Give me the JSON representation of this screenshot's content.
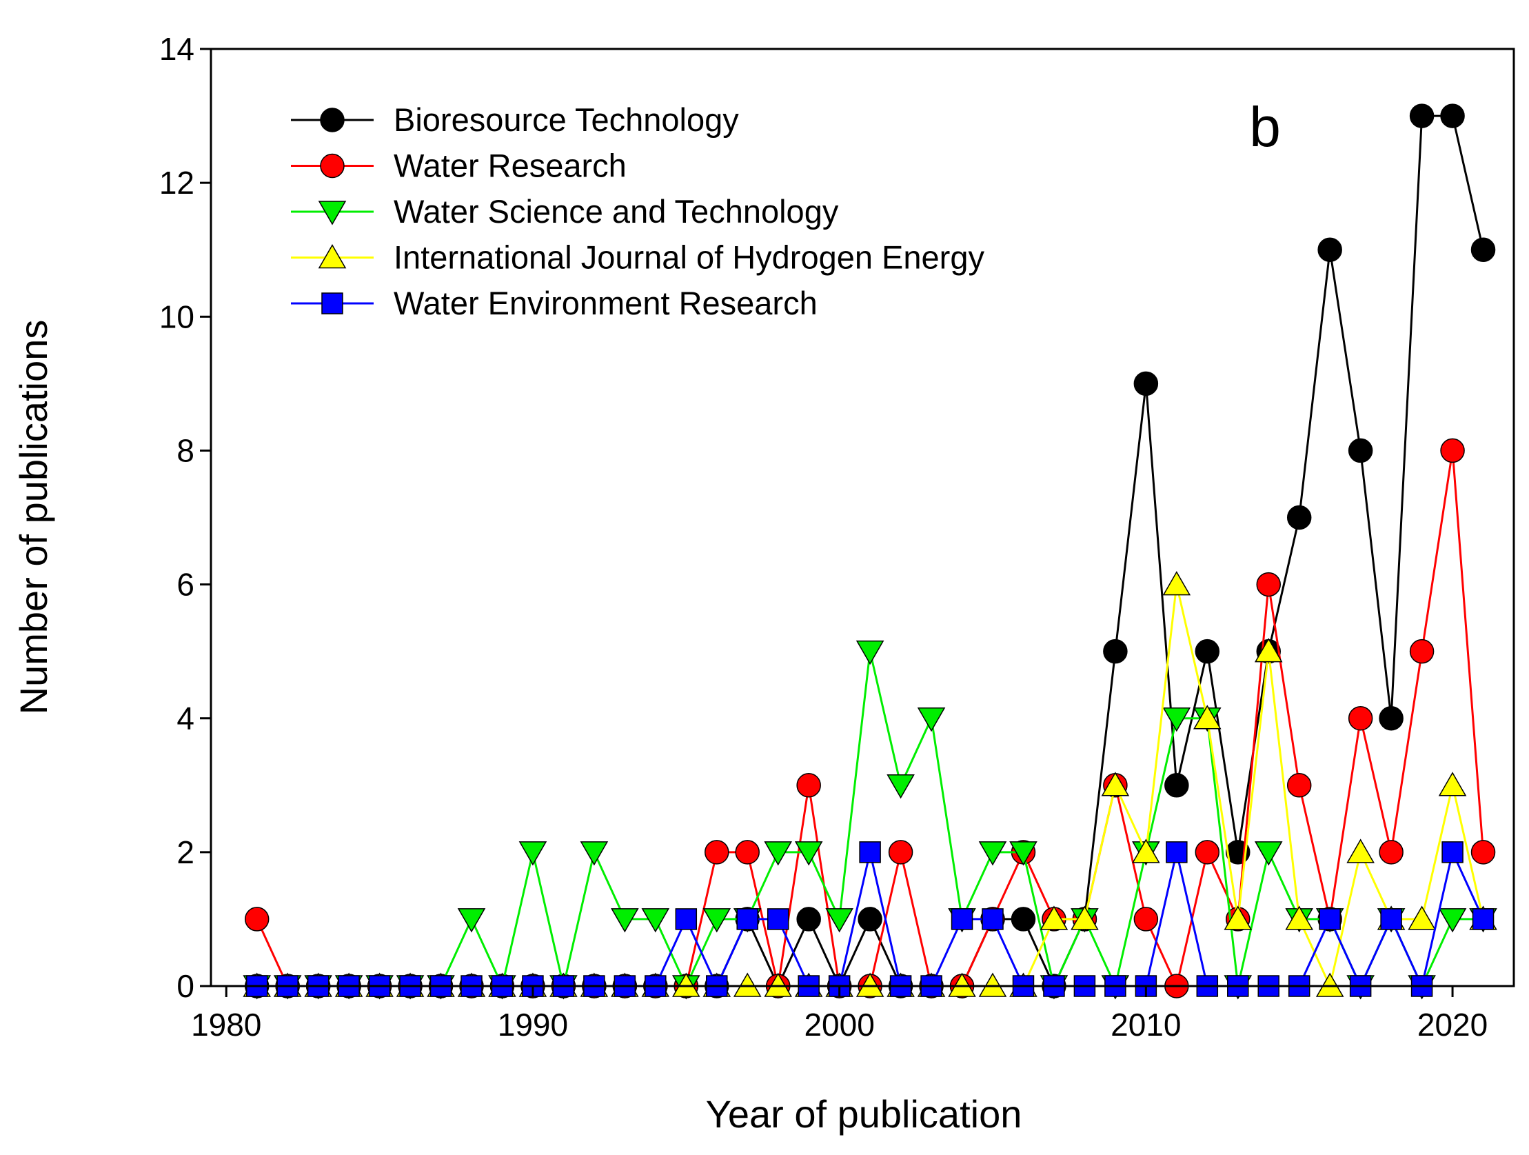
{
  "chart_data": {
    "type": "line",
    "panel_label": "b",
    "xlabel": "Year of publication",
    "ylabel": "Number of publications",
    "xlim": [
      1979.5,
      2022
    ],
    "ylim": [
      0,
      14
    ],
    "xticks": [
      1980,
      1990,
      2000,
      2010,
      2020
    ],
    "yticks": [
      0,
      2,
      4,
      6,
      8,
      10,
      12,
      14
    ],
    "legend_position": "top-left",
    "x": [
      1981,
      1982,
      1983,
      1984,
      1985,
      1986,
      1987,
      1988,
      1989,
      1990,
      1991,
      1992,
      1993,
      1994,
      1995,
      1996,
      1997,
      1998,
      1999,
      2000,
      2001,
      2002,
      2003,
      2004,
      2005,
      2006,
      2007,
      2008,
      2009,
      2010,
      2011,
      2012,
      2013,
      2014,
      2015,
      2016,
      2017,
      2018,
      2019,
      2020,
      2021
    ],
    "series": [
      {
        "name": "Bioresource Technology",
        "color": "#000000",
        "marker": "circle",
        "values": [
          0,
          0,
          0,
          0,
          0,
          0,
          0,
          0,
          0,
          0,
          0,
          0,
          0,
          0,
          0,
          0,
          1,
          0,
          1,
          0,
          1,
          0,
          0,
          0,
          1,
          1,
          0,
          1,
          5,
          9,
          3,
          5,
          2,
          5,
          7,
          11,
          8,
          4,
          13,
          13,
          11
        ]
      },
      {
        "name": "Water Research",
        "color": "#ff0000",
        "marker": "circle",
        "values": [
          1,
          0,
          0,
          0,
          0,
          0,
          0,
          0,
          0,
          0,
          0,
          0,
          0,
          0,
          0,
          2,
          2,
          0,
          3,
          0,
          0,
          2,
          0,
          0,
          1,
          2,
          1,
          1,
          3,
          1,
          0,
          2,
          1,
          6,
          3,
          1,
          4,
          2,
          5,
          8,
          2
        ]
      },
      {
        "name": "Water Science and Technology",
        "color": "#00ee00",
        "marker": "triangle-down",
        "values": [
          0,
          0,
          0,
          0,
          0,
          0,
          0,
          1,
          0,
          2,
          0,
          2,
          1,
          1,
          0,
          1,
          1,
          2,
          2,
          1,
          5,
          3,
          4,
          1,
          2,
          2,
          0,
          1,
          0,
          2,
          4,
          4,
          0,
          2,
          1,
          1,
          0,
          1,
          0,
          1,
          1
        ]
      },
      {
        "name": "International Journal of Hydrogen Energy",
        "color": "#ffff00",
        "marker": "triangle-up",
        "values": [
          0,
          0,
          0,
          0,
          0,
          0,
          0,
          0,
          0,
          0,
          0,
          0,
          0,
          0,
          0,
          0,
          0,
          0,
          0,
          0,
          0,
          0,
          0,
          0,
          0,
          0,
          1,
          1,
          3,
          2,
          6,
          4,
          1,
          5,
          1,
          0,
          2,
          1,
          1,
          3,
          1
        ]
      },
      {
        "name": "Water Environment Research",
        "color": "#0000ff",
        "marker": "square",
        "values": [
          0,
          0,
          0,
          0,
          0,
          0,
          0,
          0,
          0,
          0,
          0,
          0,
          0,
          0,
          1,
          0,
          1,
          1,
          0,
          0,
          2,
          0,
          0,
          1,
          1,
          0,
          0,
          0,
          0,
          0,
          2,
          0,
          0,
          0,
          0,
          1,
          0,
          1,
          0,
          2,
          1
        ]
      }
    ]
  }
}
